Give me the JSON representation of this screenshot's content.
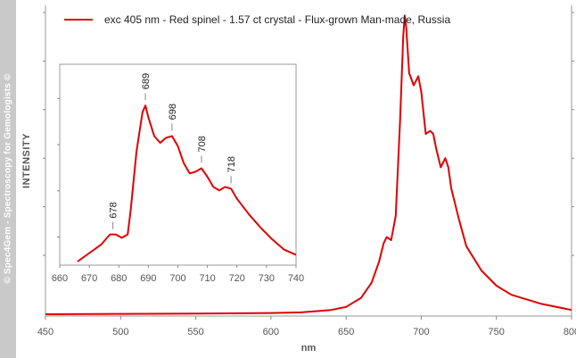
{
  "watermark": "© Spec4Gem - Spectroscopy for Gemologists ©",
  "chart_data": [
    {
      "type": "line",
      "title": "",
      "xlabel": "nm",
      "ylabel": "INTENSITY",
      "xlim": [
        450,
        800
      ],
      "ylim": [
        0,
        1
      ],
      "xticks": [
        450,
        500,
        550,
        600,
        650,
        700,
        750,
        800
      ],
      "grid": false,
      "legend": "top-left",
      "series": [
        {
          "name": "exc 405 nm - Red spinel - 1.57 ct crystal - Flux-grown Man-made, Russia",
          "color": "#e00000",
          "x": [
            450,
            500,
            550,
            600,
            620,
            640,
            650,
            660,
            667,
            672,
            675,
            677,
            680,
            683,
            686,
            688,
            689,
            690,
            692,
            695,
            698,
            700,
            703,
            706,
            708,
            710,
            713,
            716,
            718,
            720,
            725,
            730,
            740,
            750,
            760,
            780,
            800
          ],
          "y": [
            0.006,
            0.007,
            0.008,
            0.01,
            0.012,
            0.02,
            0.03,
            0.06,
            0.11,
            0.18,
            0.24,
            0.26,
            0.25,
            0.33,
            0.65,
            0.92,
            0.99,
            0.95,
            0.8,
            0.76,
            0.79,
            0.74,
            0.6,
            0.61,
            0.6,
            0.55,
            0.49,
            0.52,
            0.49,
            0.42,
            0.32,
            0.23,
            0.15,
            0.1,
            0.07,
            0.04,
            0.02
          ]
        }
      ]
    },
    {
      "type": "line",
      "title": "",
      "xlabel": "",
      "ylabel": "",
      "xlim": [
        660,
        740
      ],
      "ylim": [
        0,
        1
      ],
      "xticks": [
        660,
        670,
        680,
        690,
        700,
        710,
        720,
        730,
        740
      ],
      "grid": false,
      "peak_labels": [
        "678",
        "689",
        "698",
        "708",
        "718"
      ],
      "series": [
        {
          "color": "#e00000",
          "x": [
            666,
            670,
            674,
            677,
            679,
            681,
            683,
            684,
            686,
            688,
            689,
            690,
            692,
            694,
            696,
            698,
            700,
            702,
            704,
            706,
            708,
            710,
            712,
            714,
            716,
            718,
            720,
            724,
            728,
            732,
            736,
            740
          ],
          "y": [
            0.0,
            0.05,
            0.1,
            0.16,
            0.16,
            0.14,
            0.16,
            0.3,
            0.65,
            0.88,
            0.92,
            0.85,
            0.74,
            0.7,
            0.73,
            0.74,
            0.68,
            0.58,
            0.52,
            0.53,
            0.55,
            0.5,
            0.44,
            0.42,
            0.44,
            0.43,
            0.37,
            0.28,
            0.2,
            0.13,
            0.07,
            0.04
          ]
        }
      ]
    }
  ]
}
